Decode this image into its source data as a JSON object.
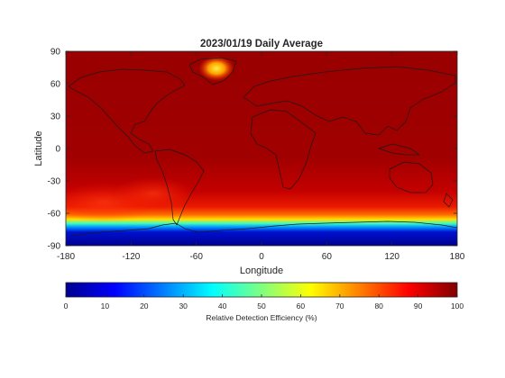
{
  "chart_data": {
    "type": "heatmap",
    "title": "2023/01/19 Daily Average",
    "xlabel": "Longitude",
    "ylabel": "Latitude",
    "xlim": [
      -180,
      180
    ],
    "ylim": [
      -90,
      90
    ],
    "x_ticks": [
      "-180",
      "-120",
      "-60",
      "0",
      "60",
      "120",
      "180"
    ],
    "y_ticks": [
      "90",
      "60",
      "30",
      "0",
      "-30",
      "-60",
      "-90"
    ],
    "colormap": "jet",
    "colorbar": {
      "label": "Relative Detection Efficiency (%)",
      "range": [
        0,
        100
      ],
      "ticks": [
        "0",
        "10",
        "20",
        "30",
        "40",
        "50",
        "60",
        "70",
        "80",
        "90",
        "100"
      ]
    },
    "latitude_profile": [
      {
        "lat": 90,
        "value": 96
      },
      {
        "lat": 60,
        "value": 96
      },
      {
        "lat": 30,
        "value": 95
      },
      {
        "lat": 0,
        "value": 94
      },
      {
        "lat": -30,
        "value": 91
      },
      {
        "lat": -50,
        "value": 88
      },
      {
        "lat": -60,
        "value": 84
      },
      {
        "lat": -66,
        "value": 72
      },
      {
        "lat": -70,
        "value": 45
      },
      {
        "lat": -74,
        "value": 20
      },
      {
        "lat": -78,
        "value": 8
      },
      {
        "lat": -90,
        "value": 5
      }
    ],
    "regions": [
      {
        "name": "Greenland",
        "lon": -38,
        "lat": 72,
        "value": 60
      },
      {
        "name": "South Pacific",
        "lon": -140,
        "lat": -40,
        "value": 85
      },
      {
        "name": "Antarctica",
        "lon": 60,
        "lat": -82,
        "value": 5
      }
    ]
  }
}
